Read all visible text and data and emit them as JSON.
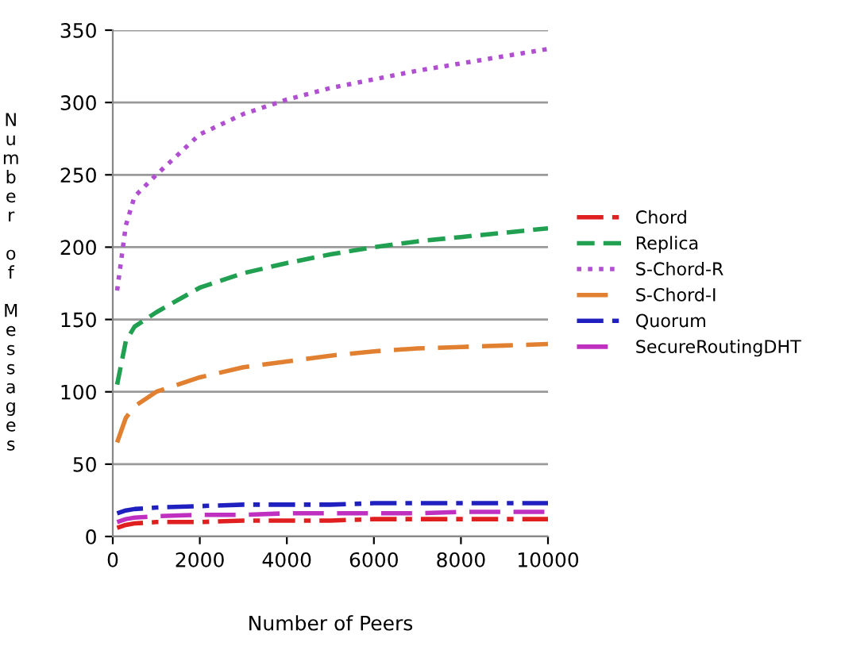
{
  "chart_data": {
    "type": "line",
    "xlabel": "Number of Peers",
    "ylabel": "Number of Messages",
    "x": [
      100,
      300,
      500,
      1000,
      2000,
      3000,
      4000,
      5000,
      6000,
      7000,
      8000,
      9000,
      10000
    ],
    "series": [
      {
        "name": "Chord",
        "color": "#e02020",
        "line_style": "dashdot",
        "values": [
          6,
          8,
          9,
          10,
          10,
          11,
          11,
          11,
          12,
          12,
          12,
          12,
          12
        ]
      },
      {
        "name": "Replica",
        "color": "#20a050",
        "line_style": "dashed",
        "values": [
          105,
          135,
          145,
          155,
          172,
          182,
          189,
          195,
          200,
          204,
          207,
          210,
          213
        ]
      },
      {
        "name": "S-Chord-R",
        "color": "#b050d0",
        "line_style": "dotted",
        "values": [
          170,
          215,
          235,
          250,
          278,
          292,
          302,
          310,
          316,
          322,
          327,
          332,
          337
        ]
      },
      {
        "name": "S-Chord-I",
        "color": "#e08030",
        "line_style": "longdash",
        "values": [
          65,
          82,
          90,
          100,
          110,
          117,
          121,
          125,
          128,
          130,
          131,
          132,
          133
        ]
      },
      {
        "name": "Quorum",
        "color": "#2020c0",
        "line_style": "dashdot",
        "values": [
          16,
          18,
          19,
          20,
          21,
          22,
          22,
          22,
          23,
          23,
          23,
          23,
          23
        ]
      },
      {
        "name": "SecureRoutingDHT",
        "color": "#c030c0",
        "line_style": "longdash",
        "values": [
          10,
          12,
          13,
          14,
          15,
          15,
          16,
          16,
          16,
          16,
          17,
          17,
          17
        ]
      }
    ],
    "xlim": [
      0,
      10000
    ],
    "xticks": [
      0,
      2000,
      4000,
      6000,
      8000,
      10000
    ],
    "ylim": [
      0,
      350
    ],
    "yticks": [
      0,
      50,
      100,
      150,
      200,
      250,
      300,
      350
    ],
    "grid": "y",
    "legend": "right",
    "marker": "none"
  }
}
